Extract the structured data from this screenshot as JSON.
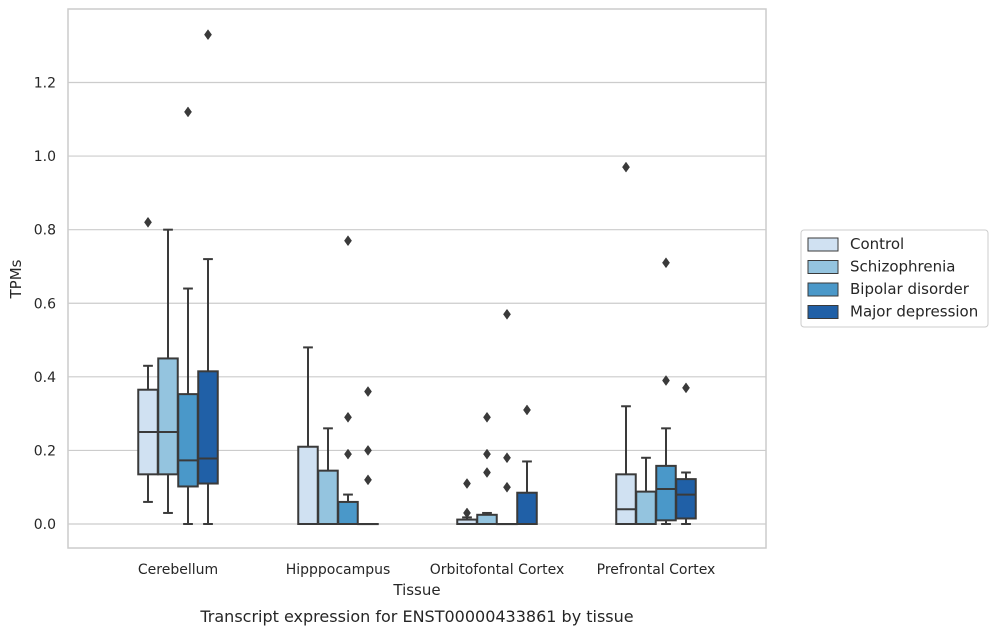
{
  "chart_data": {
    "type": "boxplot",
    "caption": "Transcript expression for ENST00000433861 by tissue",
    "xlabel": "Tissue",
    "ylabel": "TPMs",
    "ylim": [
      -0.065,
      1.4
    ],
    "yticks": [
      0.0,
      0.2,
      0.4,
      0.6,
      0.8,
      1.0,
      1.2
    ],
    "ytick_labels": [
      "0.0",
      "0.2",
      "0.4",
      "0.6",
      "0.8",
      "1.0",
      "1.2"
    ],
    "grid": "horizontal",
    "legend_position": "right",
    "categories": [
      "Cerebellum",
      "Hipppocampus",
      "Orbitofontal Cortex",
      "Prefrontal Cortex"
    ],
    "series": [
      {
        "name": "Control",
        "color": "#d0e1f2",
        "boxes": [
          {
            "whislo": 0.06,
            "q1": 0.135,
            "med": 0.25,
            "q3": 0.365,
            "whishi": 0.43,
            "fliers": [
              0.82
            ]
          },
          {
            "whislo": 0.0,
            "q1": 0.0,
            "med": 0.0,
            "q3": 0.21,
            "whishi": 0.48,
            "fliers": []
          },
          {
            "whislo": 0.0,
            "q1": 0.0,
            "med": 0.0,
            "q3": 0.012,
            "whishi": 0.018,
            "fliers": [
              0.03,
              0.11
            ]
          },
          {
            "whislo": 0.0,
            "q1": 0.0,
            "med": 0.04,
            "q3": 0.135,
            "whishi": 0.32,
            "fliers": [
              0.97
            ]
          }
        ]
      },
      {
        "name": "Schizophrenia",
        "color": "#94c4df",
        "boxes": [
          {
            "whislo": 0.03,
            "q1": 0.135,
            "med": 0.25,
            "q3": 0.45,
            "whishi": 0.8,
            "fliers": []
          },
          {
            "whislo": 0.0,
            "q1": 0.0,
            "med": 0.0,
            "q3": 0.145,
            "whishi": 0.26,
            "fliers": []
          },
          {
            "whislo": 0.0,
            "q1": 0.0,
            "med": 0.0,
            "q3": 0.025,
            "whishi": 0.03,
            "fliers": [
              0.14,
              0.19,
              0.29
            ]
          },
          {
            "whislo": 0.0,
            "q1": 0.0,
            "med": 0.0,
            "q3": 0.088,
            "whishi": 0.18,
            "fliers": []
          }
        ]
      },
      {
        "name": "Bipolar disorder",
        "color": "#4a98c9",
        "boxes": [
          {
            "whislo": 0.0,
            "q1": 0.102,
            "med": 0.173,
            "q3": 0.353,
            "whishi": 0.64,
            "fliers": [
              1.12
            ]
          },
          {
            "whislo": 0.0,
            "q1": 0.0,
            "med": 0.0,
            "q3": 0.06,
            "whishi": 0.08,
            "fliers": [
              0.19,
              0.29,
              0.77
            ]
          },
          {
            "whislo": 0.0,
            "q1": 0.0,
            "med": 0.0,
            "q3": 0.0,
            "whishi": 0.0,
            "fliers": [
              0.1,
              0.18,
              0.57
            ]
          },
          {
            "whislo": 0.0,
            "q1": 0.01,
            "med": 0.095,
            "q3": 0.158,
            "whishi": 0.26,
            "fliers": [
              0.39,
              0.71
            ]
          }
        ]
      },
      {
        "name": "Major depression",
        "color": "#2060a7",
        "boxes": [
          {
            "whislo": 0.0,
            "q1": 0.11,
            "med": 0.178,
            "q3": 0.415,
            "whishi": 0.72,
            "fliers": [
              1.33
            ]
          },
          {
            "whislo": 0.0,
            "q1": 0.0,
            "med": 0.0,
            "q3": 0.0,
            "whishi": 0.0,
            "fliers": [
              0.12,
              0.2,
              0.36
            ]
          },
          {
            "whislo": 0.0,
            "q1": 0.0,
            "med": 0.0,
            "q3": 0.085,
            "whishi": 0.17,
            "fliers": [
              0.31
            ]
          },
          {
            "whislo": 0.0,
            "q1": 0.015,
            "med": 0.08,
            "q3": 0.122,
            "whishi": 0.14,
            "fliers": [
              0.37
            ]
          }
        ]
      }
    ]
  }
}
